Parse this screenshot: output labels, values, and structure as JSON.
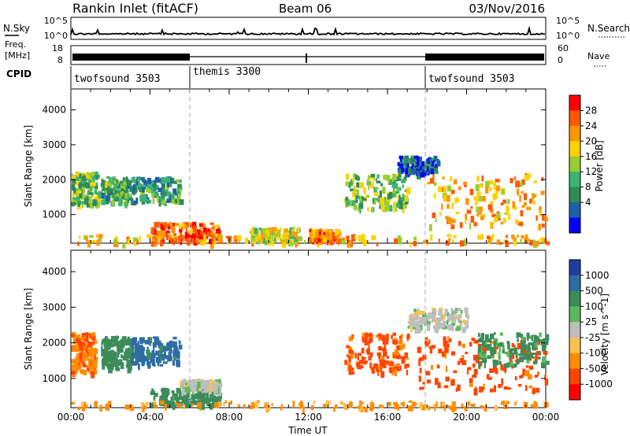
{
  "header": {
    "station": "Rankin Inlet (fitACF)",
    "beam": "Beam 06",
    "date": "03/Nov/2016"
  },
  "noise_panel": {
    "left_label": "N.Sky",
    "right_label": "N.Search",
    "left_ticks": [
      "10^5",
      "10^0"
    ],
    "right_ticks": [
      "10^5",
      "10^0"
    ]
  },
  "freq_panel": {
    "left_label_1": "Freq.",
    "left_label_2": "[MHz]",
    "left_ticks": [
      "18",
      "8"
    ],
    "right_label": "Nave",
    "right_ticks": [
      "60",
      "0"
    ]
  },
  "cpid_panel": {
    "label": "CPID",
    "segments": [
      {
        "name": "twofsound 3503",
        "start_hour": 0,
        "end_hour": 6
      },
      {
        "name": "themis 3300",
        "start_hour": 6,
        "end_hour": 18
      },
      {
        "name": "twofsound 3503",
        "start_hour": 18,
        "end_hour": 24
      }
    ]
  },
  "chart_data": [
    {
      "type": "heatmap",
      "title": "Power",
      "ylabel": "Slant Range [km]",
      "xlabel": "",
      "xlim": [
        0,
        24
      ],
      "ylim": [
        180,
        4600
      ],
      "yticks": [
        1000,
        2000,
        3000,
        4000
      ],
      "colorbar": {
        "label": "Power [dB]",
        "ticks": [
          "28",
          "24",
          "20",
          "16",
          "12",
          "8",
          "4"
        ],
        "colors": [
          "#ff0000",
          "#ff5a00",
          "#ff9600",
          "#ffd200",
          "#9acd32",
          "#3cb371",
          "#2e8b57",
          "#1f5fa8",
          "#0000ff"
        ]
      },
      "blobs": [
        {
          "t0": 0.0,
          "t1": 1.4,
          "r0": 1300,
          "r1": 2250,
          "value": 14
        },
        {
          "t0": 1.5,
          "t1": 3.0,
          "r0": 1350,
          "r1": 2100,
          "value": 12
        },
        {
          "t0": 3.0,
          "t1": 5.5,
          "r0": 1400,
          "r1": 2100,
          "value": 10
        },
        {
          "t0": 0.0,
          "t1": 24.0,
          "r0": 200,
          "r1": 450,
          "value": 22
        },
        {
          "t0": 4.0,
          "t1": 7.5,
          "r0": 280,
          "r1": 800,
          "value": 26
        },
        {
          "t0": 9.0,
          "t1": 11.5,
          "r0": 250,
          "r1": 650,
          "value": 18
        },
        {
          "t0": 12.0,
          "t1": 13.5,
          "r0": 300,
          "r1": 600,
          "value": 24
        },
        {
          "t0": 13.8,
          "t1": 17.0,
          "r0": 1200,
          "r1": 2200,
          "value": 14
        },
        {
          "t0": 16.5,
          "t1": 18.5,
          "r0": 2200,
          "r1": 2700,
          "value": 6
        },
        {
          "t0": 18.0,
          "t1": 24.0,
          "r0": 700,
          "r1": 2200,
          "value": 22
        }
      ]
    },
    {
      "type": "heatmap",
      "title": "Velocity",
      "ylabel": "Slant Range [km]",
      "xlabel": "Time UT",
      "xlim": [
        0,
        24
      ],
      "ylim": [
        180,
        4600
      ],
      "yticks": [
        1000,
        2000,
        3000,
        4000
      ],
      "xticks": [
        "00:00",
        "04:00",
        "08:00",
        "12:00",
        "16:00",
        "20:00",
        "00:00"
      ],
      "colorbar": {
        "label": "Velocity [m s^-1]",
        "ticks": [
          "1000",
          "500",
          "100",
          "25",
          "-25",
          "-100",
          "-500",
          "-1000"
        ],
        "colors": [
          "#1f3f9f",
          "#2e6da4",
          "#3c8c5a",
          "#5cb85c",
          "#bebebe",
          "#ffc04d",
          "#ff8c00",
          "#ff4500",
          "#ff0000"
        ]
      },
      "blobs": [
        {
          "t0": 0.0,
          "t1": 1.2,
          "r0": 1200,
          "r1": 2300,
          "value": -450
        },
        {
          "t0": 1.5,
          "t1": 3.0,
          "r0": 1300,
          "r1": 2200,
          "value": 300
        },
        {
          "t0": 3.0,
          "t1": 5.5,
          "r0": 1400,
          "r1": 2200,
          "value": 700
        },
        {
          "t0": 4.0,
          "t1": 7.5,
          "r0": 300,
          "r1": 750,
          "value": 200
        },
        {
          "t0": 5.5,
          "t1": 7.5,
          "r0": 700,
          "r1": 1000,
          "value": 0
        },
        {
          "t0": 0.0,
          "t1": 24.0,
          "r0": 200,
          "r1": 400,
          "value": -150
        },
        {
          "t0": 13.8,
          "t1": 17.0,
          "r0": 1200,
          "r1": 2300,
          "value": -600
        },
        {
          "t0": 17.5,
          "t1": 24.0,
          "r0": 700,
          "r1": 2200,
          "value": -700
        },
        {
          "t0": 20.5,
          "t1": 24.0,
          "r0": 1400,
          "r1": 2300,
          "value": 150
        },
        {
          "t0": 17.0,
          "t1": 20.0,
          "r0": 2400,
          "r1": 3000,
          "value": 0
        }
      ]
    }
  ]
}
